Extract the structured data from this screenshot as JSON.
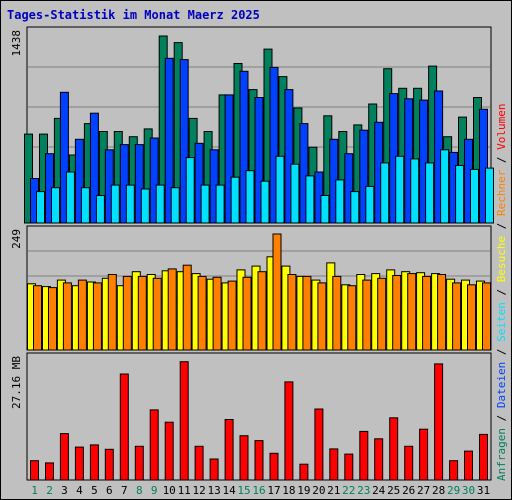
{
  "title": "Tages-Statistik im Monat Maerz 2025",
  "chart_data": [
    {
      "type": "bar",
      "panel": "Anfragen / Dateien / Seiten",
      "scale_label": "1438",
      "ylim": [
        0,
        1438
      ],
      "grid": true,
      "categories": [
        "1",
        "2",
        "3",
        "4",
        "5",
        "6",
        "7",
        "8",
        "9",
        "10",
        "11",
        "12",
        "13",
        "14",
        "15",
        "16",
        "17",
        "18",
        "19",
        "20",
        "21",
        "22",
        "23",
        "24",
        "25",
        "26",
        "27",
        "28",
        "29",
        "30",
        "31"
      ],
      "weekend_days": [
        "1",
        "2",
        "8",
        "9",
        "15",
        "16",
        "22",
        "23",
        "29",
        "30"
      ],
      "series": [
        {
          "name": "Anfragen",
          "color": "#00805c",
          "values": [
            680,
            680,
            800,
            520,
            760,
            700,
            700,
            660,
            720,
            1430,
            1380,
            800,
            700,
            980,
            1220,
            1020,
            1330,
            1120,
            880,
            580,
            820,
            700,
            750,
            910,
            1180,
            1030,
            1030,
            1200,
            660,
            810,
            960
          ]
        },
        {
          "name": "Dateien",
          "color": "#0040ff",
          "values": [
            340,
            530,
            1000,
            640,
            840,
            560,
            600,
            600,
            650,
            1260,
            1250,
            610,
            560,
            980,
            1160,
            960,
            1190,
            1020,
            760,
            390,
            640,
            530,
            710,
            770,
            990,
            950,
            940,
            1010,
            540,
            640,
            870
          ]
        },
        {
          "name": "Seiten",
          "color": "#00e0ff",
          "values": [
            240,
            270,
            390,
            270,
            210,
            290,
            290,
            260,
            290,
            270,
            500,
            290,
            290,
            350,
            400,
            320,
            510,
            450,
            360,
            210,
            330,
            240,
            280,
            460,
            510,
            490,
            460,
            560,
            440,
            410,
            420
          ]
        }
      ]
    },
    {
      "type": "bar",
      "panel": "Besuche / Rechner",
      "scale_label": "249",
      "ylim": [
        0,
        249
      ],
      "grid": true,
      "categories": [
        "1",
        "2",
        "3",
        "4",
        "5",
        "6",
        "7",
        "8",
        "9",
        "10",
        "11",
        "12",
        "13",
        "14",
        "15",
        "16",
        "17",
        "18",
        "19",
        "20",
        "21",
        "22",
        "23",
        "24",
        "25",
        "26",
        "27",
        "28",
        "29",
        "30",
        "31"
      ],
      "series": [
        {
          "name": "Besuche",
          "color": "#ffff00",
          "values": [
            142,
            136,
            150,
            138,
            146,
            154,
            138,
            168,
            162,
            170,
            168,
            164,
            152,
            144,
            172,
            180,
            200,
            180,
            158,
            150,
            187,
            140,
            162,
            164,
            172,
            168,
            166,
            164,
            152,
            150,
            148
          ]
        },
        {
          "name": "Rechner",
          "color": "#ff8000",
          "values": [
            138,
            134,
            144,
            150,
            144,
            162,
            158,
            158,
            154,
            174,
            182,
            158,
            156,
            148,
            156,
            168,
            249,
            162,
            158,
            144,
            158,
            138,
            150,
            154,
            160,
            164,
            158,
            162,
            144,
            140,
            144
          ]
        }
      ]
    },
    {
      "type": "bar",
      "panel": "Volumen",
      "scale_label": "27.16 MB",
      "ylim": [
        0,
        27.16
      ],
      "grid": false,
      "categories": [
        "1",
        "2",
        "3",
        "4",
        "5",
        "6",
        "7",
        "8",
        "9",
        "10",
        "11",
        "12",
        "13",
        "14",
        "15",
        "16",
        "17",
        "18",
        "19",
        "20",
        "21",
        "22",
        "23",
        "24",
        "25",
        "26",
        "27",
        "28",
        "29",
        "30",
        "31"
      ],
      "series": [
        {
          "name": "Volumen",
          "color": "#ff0000",
          "values": [
            4.4,
            3.9,
            10.6,
            7.5,
            8.0,
            7.0,
            24.2,
            7.7,
            16.0,
            13.2,
            27.0,
            7.7,
            4.8,
            13.8,
            10.1,
            9.0,
            6.1,
            22.4,
            3.6,
            16.2,
            7.1,
            5.9,
            11.1,
            9.4,
            14.2,
            7.7,
            11.6,
            26.5,
            4.4,
            6.6,
            10.4
          ]
        }
      ]
    }
  ],
  "axis_titles": [
    {
      "text": "Anfragen",
      "color": "#00805c"
    },
    {
      "text": " / ",
      "color": "#000000"
    },
    {
      "text": "Dateien",
      "color": "#0040ff"
    },
    {
      "text": " / ",
      "color": "#000000"
    },
    {
      "text": "Seiten",
      "color": "#00e0ff"
    },
    {
      "text": " / ",
      "color": "#000000"
    },
    {
      "text": "Besuche",
      "color": "#ffff00"
    },
    {
      "text": " / ",
      "color": "#000000"
    },
    {
      "text": "Rechner",
      "color": "#ff8000"
    },
    {
      "text": " / ",
      "color": "#000000"
    },
    {
      "text": "Volumen",
      "color": "#ff0000"
    }
  ],
  "colors": {
    "background": "#c0c0c0",
    "plot": "#c0c0c0",
    "gridline": "#808080",
    "title": "#0000c0",
    "weekday_label": "#000000",
    "weekend_label": "#00805c"
  }
}
